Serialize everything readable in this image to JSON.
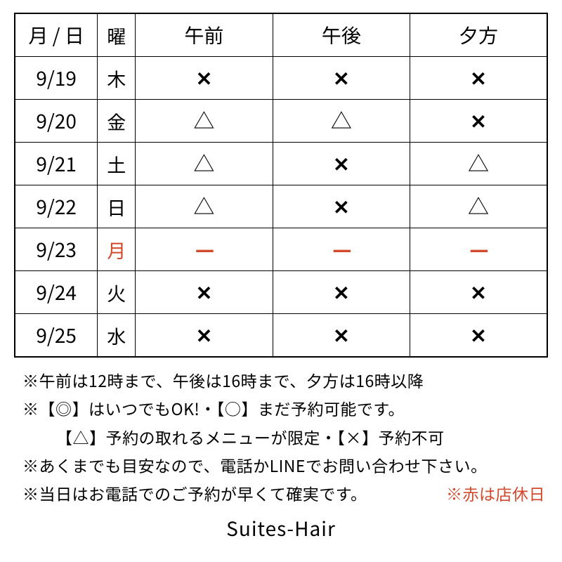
{
  "table": {
    "headers": {
      "date": "月 / 日",
      "day": "曜",
      "morning": "午前",
      "afternoon": "午後",
      "evening": "夕方"
    },
    "rows": [
      {
        "date": "9/19",
        "day": "木",
        "day_red": false,
        "cells": [
          "x",
          "x",
          "x"
        ]
      },
      {
        "date": "9/20",
        "day": "金",
        "day_red": false,
        "cells": [
          "tri",
          "tri",
          "x"
        ]
      },
      {
        "date": "9/21",
        "day": "土",
        "day_red": false,
        "cells": [
          "tri",
          "x",
          "tri"
        ]
      },
      {
        "date": "9/22",
        "day": "日",
        "day_red": false,
        "cells": [
          "tri",
          "x",
          "tri"
        ]
      },
      {
        "date": "9/23",
        "day": "月",
        "day_red": true,
        "cells": [
          "dash",
          "dash",
          "dash"
        ]
      },
      {
        "date": "9/24",
        "day": "火",
        "day_red": false,
        "cells": [
          "x",
          "x",
          "x"
        ]
      },
      {
        "date": "9/25",
        "day": "水",
        "day_red": false,
        "cells": [
          "x",
          "x",
          "x"
        ]
      }
    ]
  },
  "symbols": {
    "x": "✕",
    "tri": "△",
    "dash": "—",
    "red_symbols": [
      "dash"
    ]
  },
  "legend": {
    "line1": "※午前は12時まで、午後は16時まで、夕方は16時以降",
    "line2": "※【◎】はいつでもOK!・【○】まだ予約可能です。",
    "line3": "【△】予約の取れるメニューが限定・【×】予約不可",
    "line4": "※あくまでも目安なので、電話かLINEでお問い合わせ下さい。",
    "line5": "※当日はお電話でのご予約が早くて確実です。",
    "closed": "※赤は店休日"
  },
  "brand": "Suites-Hair",
  "colors": {
    "text": "#000000",
    "red": "#d24a2c",
    "border": "#000000",
    "background": "#ffffff"
  }
}
